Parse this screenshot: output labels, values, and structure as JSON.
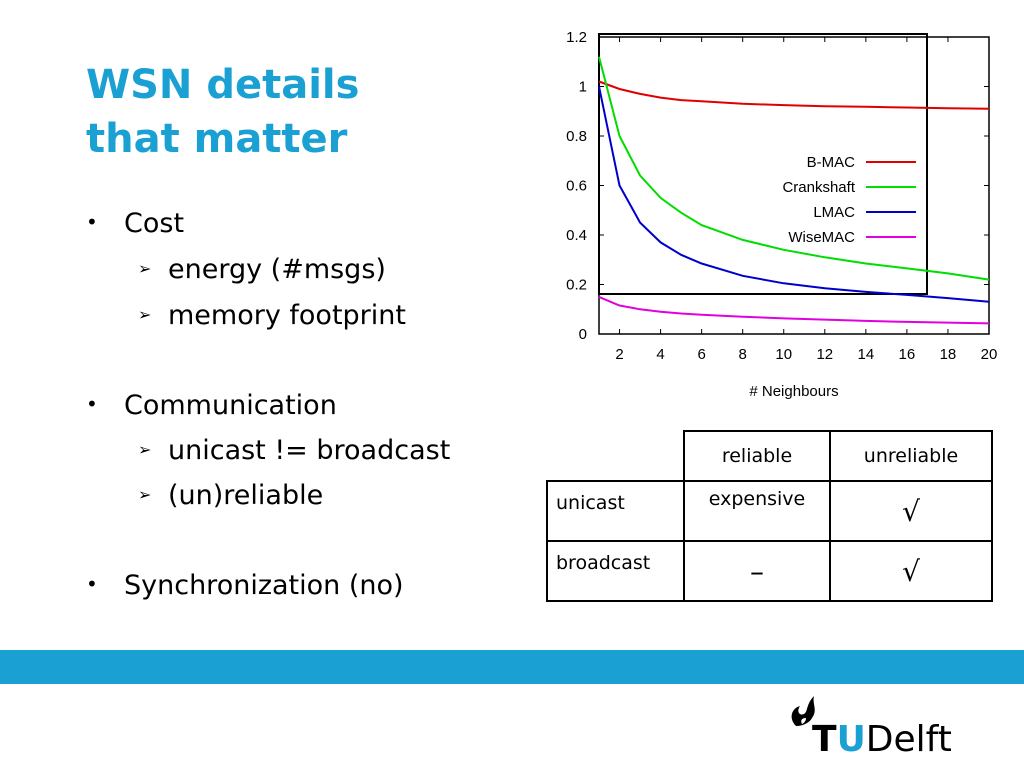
{
  "slide": {
    "title_line1": "WSN details",
    "title_line2": "that matter",
    "bullets": [
      {
        "label": "Cost",
        "subs": [
          "energy (#msgs)",
          "memory footprint"
        ]
      },
      {
        "label": "Communication",
        "subs": [
          "unicast != broadcast",
          "(un)reliable"
        ]
      },
      {
        "label": "Synchronization (no)",
        "subs": []
      }
    ],
    "bullet_glyph": "•",
    "sub_glyph": "➢"
  },
  "table": {
    "headers": [
      "reliable",
      "unreliable"
    ],
    "rows": [
      {
        "label": "unicast",
        "cells": [
          "expensive",
          "√"
        ]
      },
      {
        "label": "broadcast",
        "cells": [
          "–",
          "√"
        ]
      }
    ]
  },
  "logo": {
    "letter_t": "T",
    "letter_u": "U",
    "rest": "Delft",
    "icon": "flame-icon"
  },
  "colors": {
    "accent": "#1aa0d2"
  },
  "chart_data": {
    "type": "line",
    "title": "",
    "xlabel": "# Neighbours",
    "ylabel": "",
    "xlim": [
      1,
      20
    ],
    "ylim": [
      0,
      1.2
    ],
    "xticks": [
      2,
      4,
      6,
      8,
      10,
      12,
      14,
      16,
      18,
      20
    ],
    "yticks": [
      "0",
      "0.2",
      "0.4",
      "0.6",
      "0.8",
      "1",
      "1.2"
    ],
    "legend_position": "top-right",
    "grid": false,
    "x": [
      1,
      2,
      3,
      4,
      5,
      6,
      8,
      10,
      12,
      14,
      16,
      18,
      20
    ],
    "series": [
      {
        "name": "B-MAC",
        "color": "#e00000",
        "values": [
          1.02,
          0.99,
          0.97,
          0.955,
          0.945,
          0.94,
          0.93,
          0.925,
          0.92,
          0.918,
          0.915,
          0.912,
          0.91
        ]
      },
      {
        "name": "Crankshaft",
        "color": "#00dd00",
        "values": [
          1.12,
          0.8,
          0.64,
          0.55,
          0.49,
          0.44,
          0.38,
          0.34,
          0.31,
          0.285,
          0.265,
          0.245,
          0.22
        ]
      },
      {
        "name": "LMAC",
        "color": "#0000cc",
        "values": [
          1.0,
          0.6,
          0.45,
          0.37,
          0.32,
          0.285,
          0.235,
          0.205,
          0.185,
          0.17,
          0.158,
          0.145,
          0.13
        ]
      },
      {
        "name": "WiseMAC",
        "color": "#e000e0",
        "values": [
          0.15,
          0.115,
          0.1,
          0.09,
          0.083,
          0.078,
          0.07,
          0.063,
          0.058,
          0.053,
          0.049,
          0.046,
          0.043
        ]
      }
    ]
  }
}
